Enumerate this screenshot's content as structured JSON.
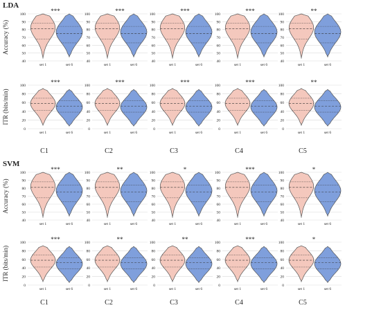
{
  "colors": {
    "left_fill": "#f4c8bd",
    "right_fill": "#7f9fdc",
    "outline": "#555555",
    "grid": "#d9d9d9"
  },
  "chart_data": {
    "type": "violin",
    "classifiers": [
      "LDA",
      "SVM"
    ],
    "columns": [
      "C1",
      "C2",
      "C3",
      "C4",
      "C5"
    ],
    "metrics": [
      {
        "key": "acc",
        "ylabel": "Accuracy (%)",
        "ticks": [
          40,
          50,
          60,
          70,
          80,
          90,
          100
        ],
        "ylim": [
          40,
          100
        ]
      },
      {
        "key": "itr",
        "ylabel": "ITR (bits/min)",
        "ticks": [
          0,
          20,
          40,
          60,
          80,
          100
        ],
        "ylim": [
          0,
          100
        ]
      }
    ],
    "groups": [
      "set 1",
      "set 6"
    ],
    "significance": {
      "LDA": {
        "acc": [
          "***",
          "***",
          "***",
          "***",
          "**"
        ],
        "itr": [
          "***",
          "***",
          "***",
          "***",
          "**"
        ]
      },
      "SVM": {
        "acc": [
          "***",
          "**",
          "*",
          "***",
          "*"
        ],
        "itr": [
          "***",
          "**",
          "**",
          "***",
          "*"
        ]
      }
    },
    "quartiles": {
      "acc": {
        "set 1": [
          68,
          81,
          88
        ],
        "set 6": [
          63,
          75,
          84
        ]
      },
      "itr": {
        "set 1": [
          42,
          58,
          70
        ],
        "set 6": [
          38,
          52,
          64
        ]
      }
    },
    "range": {
      "acc": {
        "set 1": [
          43,
          100
        ],
        "set 6": [
          45,
          100
        ]
      },
      "itr": {
        "set 1": [
          8,
          92
        ],
        "set 6": [
          6,
          90
        ]
      }
    }
  }
}
